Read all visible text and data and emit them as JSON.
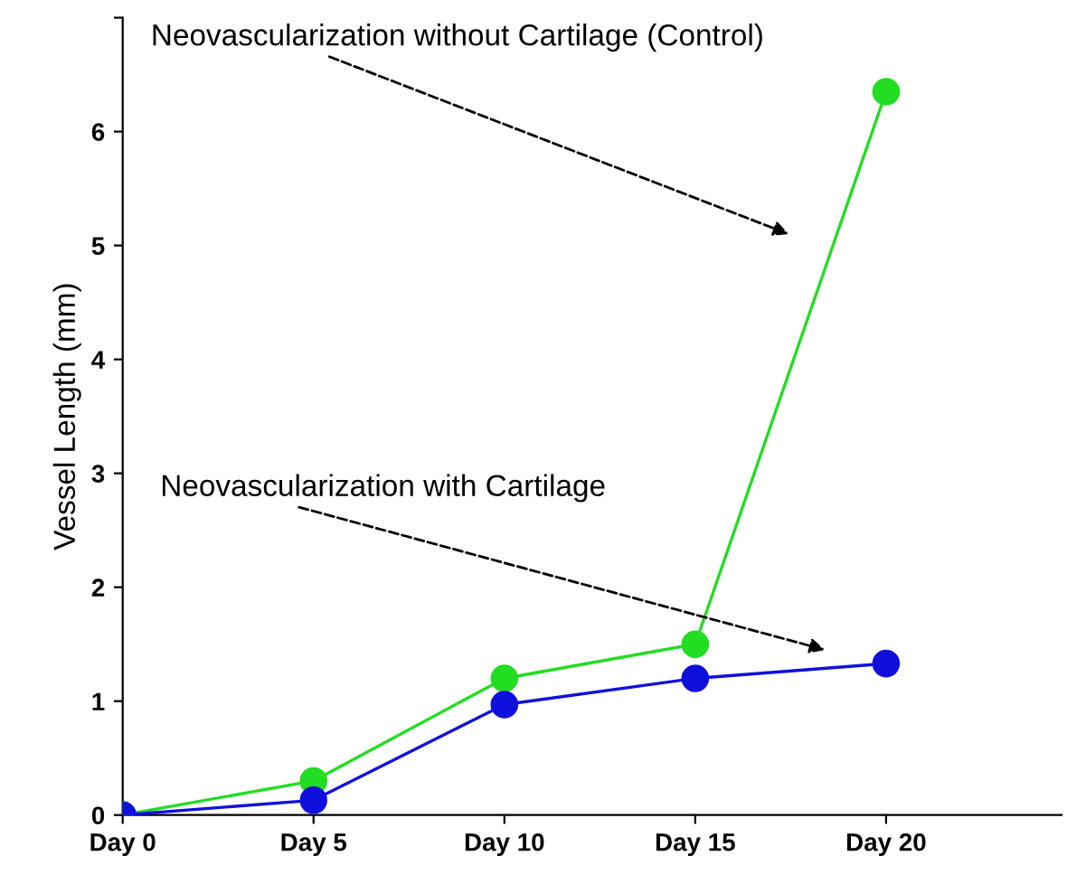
{
  "chart_data": {
    "type": "line",
    "ylabel": "Vessel Length (mm)",
    "categories": [
      "Day 0",
      "Day 5",
      "Day 10",
      "Day 15",
      "Day 20"
    ],
    "series": [
      {
        "name": "Neovascularization without Cartilage (Control)",
        "color": "#22dd22",
        "values": [
          0,
          0.3,
          1.2,
          1.5,
          6.35
        ]
      },
      {
        "name": "Neovascularization with Cartilage",
        "color": "#1010dd",
        "values": [
          0,
          0.13,
          0.97,
          1.2,
          1.33
        ]
      }
    ],
    "ylim": [
      0,
      7
    ],
    "yticks": [
      0,
      1,
      2,
      3,
      4,
      5,
      6,
      {
        "value": 7,
        "label": null
      }
    ],
    "marker": "circle",
    "line_style": "solid",
    "grid": false,
    "legend": false
  }
}
